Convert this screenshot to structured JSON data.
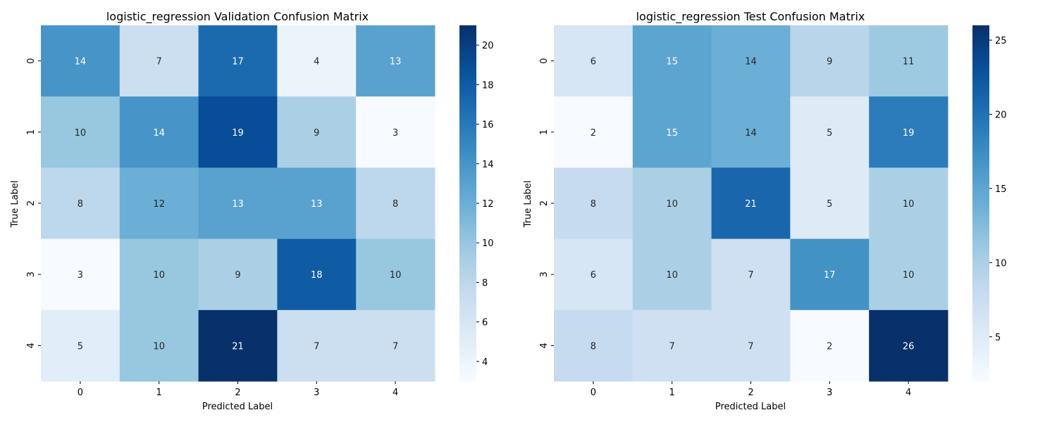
{
  "chart_data": [
    {
      "type": "heatmap",
      "title": "logistic_regression Validation Confusion Matrix",
      "xlabel": "Predicted Label",
      "ylabel": "True Label",
      "x_categories": [
        "0",
        "1",
        "2",
        "3",
        "4"
      ],
      "y_categories": [
        "0",
        "1",
        "2",
        "3",
        "4"
      ],
      "values": [
        [
          14,
          7,
          17,
          4,
          13
        ],
        [
          10,
          14,
          19,
          9,
          3
        ],
        [
          8,
          12,
          13,
          13,
          8
        ],
        [
          3,
          10,
          9,
          18,
          10
        ],
        [
          5,
          10,
          21,
          7,
          7
        ]
      ],
      "colorbar": {
        "min": 3,
        "max": 21,
        "ticks": [
          4,
          6,
          8,
          10,
          12,
          14,
          16,
          18,
          20
        ]
      },
      "colormap": "Blues",
      "annotated": true
    },
    {
      "type": "heatmap",
      "title": "logistic_regression Test Confusion Matrix",
      "xlabel": "Predicted Label",
      "ylabel": "True Label",
      "x_categories": [
        "0",
        "1",
        "2",
        "3",
        "4"
      ],
      "y_categories": [
        "0",
        "1",
        "2",
        "3",
        "4"
      ],
      "values": [
        [
          6,
          15,
          14,
          9,
          11
        ],
        [
          2,
          15,
          14,
          5,
          19
        ],
        [
          8,
          10,
          21,
          5,
          10
        ],
        [
          6,
          10,
          7,
          17,
          10
        ],
        [
          8,
          7,
          7,
          2,
          26
        ]
      ],
      "colorbar": {
        "min": 2,
        "max": 26,
        "ticks": [
          5,
          10,
          15,
          20,
          25
        ]
      },
      "colormap": "Blues",
      "annotated": true
    }
  ]
}
